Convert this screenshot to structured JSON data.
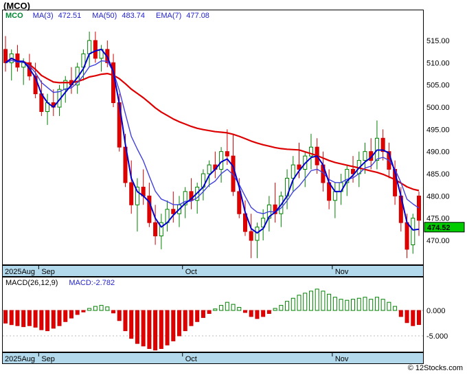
{
  "window": {
    "title": "(MCO)"
  },
  "legend": {
    "symbol": "MCO",
    "items": [
      {
        "label": "MA(3)",
        "value": "472.51"
      },
      {
        "label": "MA(50)",
        "value": "483.74"
      },
      {
        "label": "EMA(7)",
        "value": "477.08"
      }
    ]
  },
  "macd": {
    "params_label": "MACD(26,12,9)",
    "value_label": "MACD:-2.782"
  },
  "footer": {
    "copyright": "© 12Stocks.com"
  },
  "colors": {
    "up": "#008000",
    "down": "#e00000",
    "band": "#b3d9ec",
    "badge": "#00cc00",
    "ma3": "#0000cc",
    "ma50": "#dd0000",
    "ema7": "#4040dd"
  },
  "chart_data": [
    {
      "type": "candlestick",
      "symbol": "MCO",
      "title": "MCO daily price with MA(3), MA(50), EMA(7)",
      "last_price": 474.52,
      "ylim": [
        464.5,
        521.5
      ],
      "y_ticks": [
        515,
        510,
        505,
        500,
        495,
        490,
        485,
        480,
        475,
        470
      ],
      "x_months": [
        {
          "label": "2025Aug",
          "index": 0
        },
        {
          "label": "Sep",
          "index": 6
        },
        {
          "label": "Oct",
          "index": 30
        },
        {
          "label": "Nov",
          "index": 55
        }
      ],
      "overlays": [
        {
          "name": "MA(3)",
          "period": 3,
          "value": 472.51,
          "color": "#0000cc"
        },
        {
          "name": "MA(50)",
          "period": 50,
          "value": 483.74,
          "color": "#dd0000"
        },
        {
          "name": "EMA(7)",
          "period": 7,
          "value": 477.08,
          "color": "#4040dd"
        }
      ],
      "ohlc": [
        [
          513,
          516,
          508,
          510
        ],
        [
          510,
          513,
          506,
          512
        ],
        [
          512,
          514,
          508,
          509
        ],
        [
          509,
          511,
          505,
          510
        ],
        [
          510,
          512,
          506,
          507
        ],
        [
          507,
          510,
          502,
          503
        ],
        [
          503,
          506,
          498,
          499
        ],
        [
          499,
          503,
          496,
          501
        ],
        [
          501,
          504,
          498,
          500
        ],
        [
          500,
          505,
          498,
          504
        ],
        [
          504,
          507,
          501,
          506
        ],
        [
          506,
          509,
          503,
          505
        ],
        [
          505,
          510,
          503,
          509
        ],
        [
          509,
          513,
          506,
          512
        ],
        [
          512,
          517,
          509,
          515
        ],
        [
          515,
          517,
          510,
          511
        ],
        [
          511,
          514,
          508,
          513
        ],
        [
          513,
          515,
          509,
          510
        ],
        [
          510,
          512,
          500,
          501
        ],
        [
          501,
          503,
          490,
          491
        ],
        [
          491,
          494,
          482,
          483
        ],
        [
          483,
          488,
          476,
          478
        ],
        [
          478,
          484,
          472,
          482
        ],
        [
          482,
          486,
          478,
          480
        ],
        [
          480,
          483,
          473,
          474
        ],
        [
          474,
          478,
          469,
          471
        ],
        [
          471,
          476,
          468,
          474
        ],
        [
          474,
          479,
          472,
          477
        ],
        [
          477,
          481,
          474,
          476
        ],
        [
          476,
          480,
          473,
          478
        ],
        [
          478,
          482,
          475,
          481
        ],
        [
          481,
          484,
          477,
          479
        ],
        [
          479,
          483,
          476,
          482
        ],
        [
          482,
          486,
          479,
          485
        ],
        [
          485,
          488,
          482,
          487
        ],
        [
          487,
          490,
          484,
          486
        ],
        [
          486,
          491,
          483,
          490
        ],
        [
          490,
          495,
          487,
          489
        ],
        [
          489,
          494,
          480,
          481
        ],
        [
          481,
          484,
          475,
          476
        ],
        [
          476,
          479,
          471,
          472
        ],
        [
          472,
          476,
          466,
          470
        ],
        [
          470,
          474,
          466,
          473
        ],
        [
          473,
          477,
          470,
          475
        ],
        [
          475,
          480,
          472,
          478
        ],
        [
          478,
          483,
          474,
          476
        ],
        [
          476,
          481,
          473,
          480
        ],
        [
          480,
          486,
          477,
          484
        ],
        [
          484,
          489,
          481,
          487
        ],
        [
          487,
          492,
          484,
          486
        ],
        [
          486,
          490,
          482,
          489
        ],
        [
          489,
          494,
          486,
          491
        ],
        [
          491,
          493,
          485,
          487
        ],
        [
          487,
          490,
          481,
          483
        ],
        [
          483,
          486,
          477,
          479
        ],
        [
          479,
          483,
          475,
          481
        ],
        [
          481,
          485,
          478,
          483
        ],
        [
          483,
          487,
          480,
          486
        ],
        [
          486,
          489,
          483,
          485
        ],
        [
          485,
          490,
          482,
          488
        ],
        [
          488,
          492,
          485,
          490
        ],
        [
          490,
          493,
          486,
          488
        ],
        [
          488,
          497,
          486,
          493
        ],
        [
          493,
          495,
          488,
          490
        ],
        [
          490,
          492,
          484,
          486
        ],
        [
          486,
          488,
          478,
          480
        ],
        [
          480,
          482,
          472,
          474
        ],
        [
          474,
          476,
          466,
          468
        ],
        [
          469,
          476,
          467,
          475
        ],
        [
          480,
          481,
          471,
          474.52
        ]
      ]
    },
    {
      "type": "bar",
      "title": "MACD(26,12,9)",
      "value": -2.782,
      "ylim": [
        -7.9,
        5.1
      ],
      "y_ticks": [
        0,
        -5
      ],
      "values": [
        -2.5,
        -2.8,
        -3,
        -3.2,
        -3,
        -3.3,
        -3.8,
        -4,
        -3.5,
        -3,
        -2.2,
        -1.5,
        -0.8,
        -0.3,
        0.4,
        0.8,
        1,
        0.7,
        -0.5,
        -2,
        -4,
        -5.5,
        -6.5,
        -7,
        -7.5,
        -7.8,
        -7.5,
        -6.8,
        -6,
        -5,
        -4,
        -3,
        -2.2,
        -1.4,
        -0.6,
        0.3,
        1,
        1.6,
        1.2,
        0.6,
        -0.4,
        -1.2,
        -1.6,
        -1.2,
        -0.6,
        0.4,
        1,
        1.8,
        2.4,
        3,
        3.4,
        3.8,
        4.2,
        3.8,
        3.2,
        2.6,
        2.2,
        2,
        2.2,
        2.4,
        2.6,
        2.2,
        2.6,
        2.2,
        1.6,
        0.8,
        -1.2,
        -2.4,
        -3,
        -2.782
      ]
    }
  ]
}
